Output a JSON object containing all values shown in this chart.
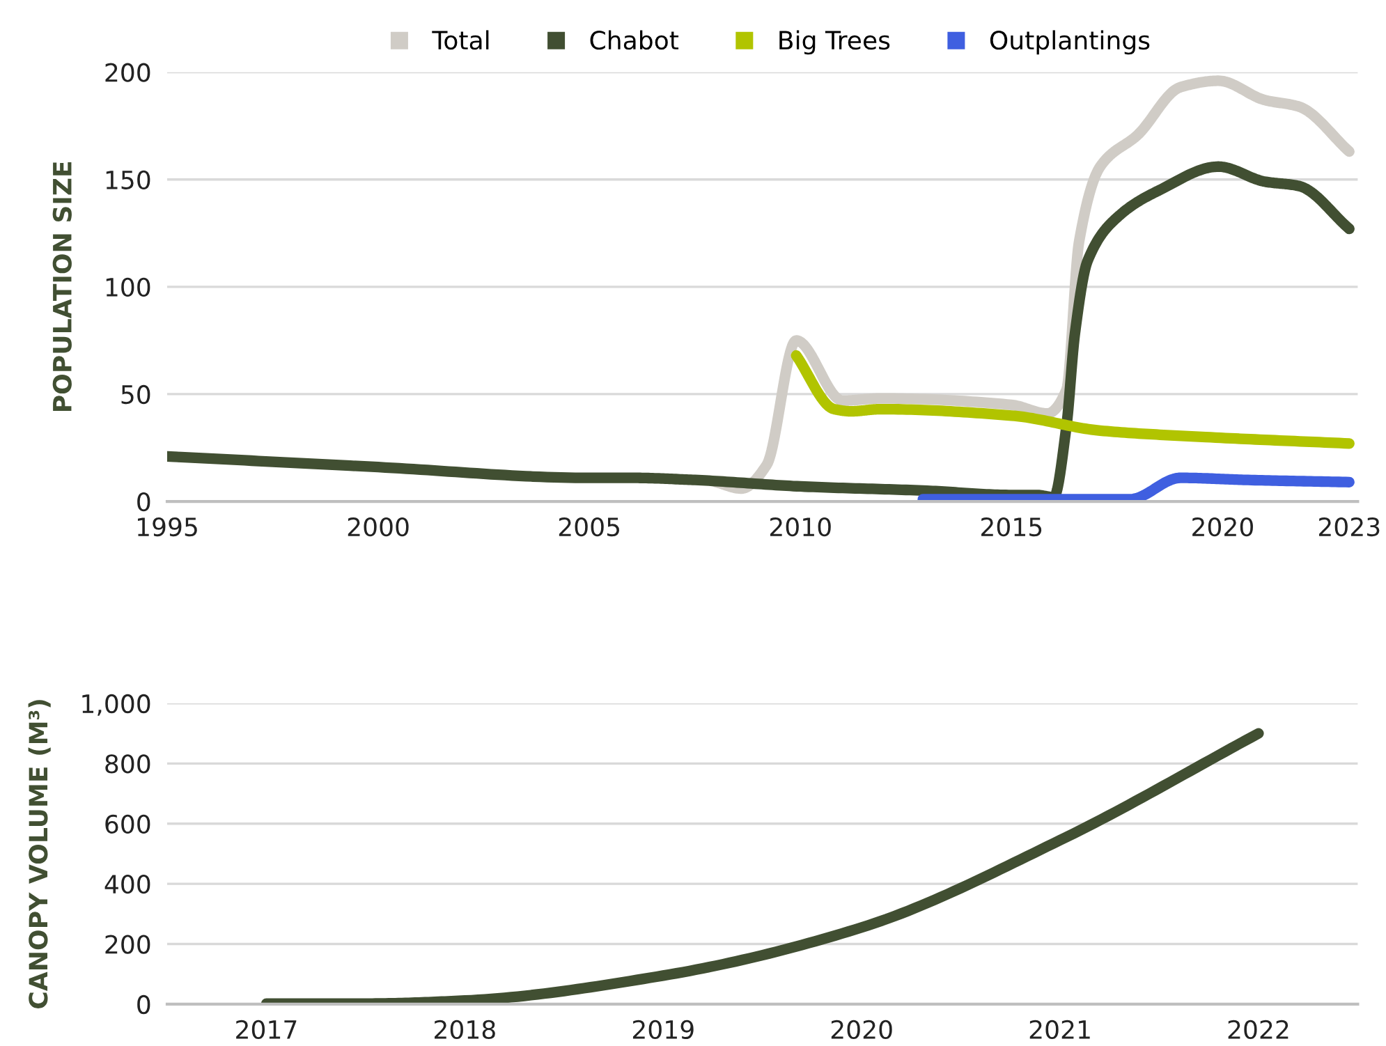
{
  "chart_data": [
    {
      "type": "line",
      "ylabel": "POPULATION SIZE",
      "xlim": [
        1995,
        2023.2
      ],
      "xticks": [
        1995,
        2000,
        2005,
        2010,
        2015,
        2020,
        2023
      ],
      "ylim": [
        0,
        200
      ],
      "yticks": [
        0,
        50,
        100,
        150,
        200
      ],
      "grid": "y",
      "legend": "top",
      "marker": "none",
      "line_style": "solid",
      "series": [
        {
          "name": "Total",
          "color": "#d0ccc6",
          "x": [
            2008,
            2008.6,
            2009.2,
            2009.9,
            2011.0,
            2011.9,
            2015.0,
            2015.85,
            2016.3,
            2016.6,
            2017.1,
            2018.0,
            2019.0,
            2019.9,
            2021.0,
            2021.8,
            2023
          ],
          "values": [
            9,
            6,
            17,
            75,
            47,
            48,
            45,
            41,
            52,
            121,
            156,
            171,
            193,
            196,
            187,
            184,
            163
          ]
        },
        {
          "name": "Chabot",
          "color": "#414f32",
          "x": [
            1995,
            2000,
            2005,
            2006,
            2007.5,
            2010,
            2013,
            2015,
            2015.6,
            2016.0,
            2016.3,
            2016.5,
            2016.8,
            2017.6,
            2018.5,
            2019.9,
            2021.0,
            2021.8,
            2023
          ],
          "values": [
            21,
            16,
            11,
            11,
            10,
            7,
            5,
            3,
            3,
            2,
            35,
            78,
            112,
            134,
            145,
            156,
            149,
            147,
            127
          ]
        },
        {
          "name": "Big Trees",
          "color": "#b1c400",
          "x": [
            2009.9,
            2010.8,
            2011.2,
            2011.9,
            2015.0,
            2017.1,
            2019.6,
            2023
          ],
          "values": [
            68,
            43,
            42,
            43,
            40,
            33,
            30,
            27
          ]
        },
        {
          "name": "Outplantings",
          "color": "#3f5fe0",
          "x": [
            2012.9,
            2015.0,
            2017.8,
            2019.0,
            2020.6,
            2023
          ],
          "values": [
            1,
            1,
            1,
            11,
            10,
            9
          ]
        }
      ]
    },
    {
      "type": "line",
      "ylabel": "CANOPY VOLUME (M³)",
      "xlim": [
        2016.5,
        2022.5
      ],
      "xticks": [
        2017,
        2018,
        2019,
        2020,
        2021,
        2022
      ],
      "ylim": [
        0,
        1000
      ],
      "yticks": [
        0,
        {
          "value": 200,
          "label": "200"
        },
        {
          "value": 400,
          "label": "400"
        },
        {
          "value": 600,
          "label": "600"
        },
        {
          "value": 800,
          "label": "800"
        },
        {
          "value": 1000,
          "label": "1,000"
        }
      ],
      "grid": "y",
      "marker": "none",
      "line_style": "solid",
      "series": [
        {
          "color": "#414f32",
          "x": [
            2017,
            2017.5,
            2018,
            2019,
            2020,
            2021,
            2022
          ],
          "values": [
            2,
            2,
            12,
            95,
            255,
            545,
            900
          ]
        }
      ]
    }
  ]
}
